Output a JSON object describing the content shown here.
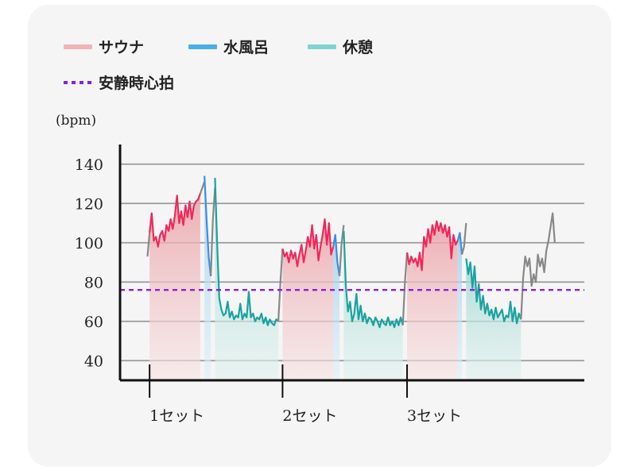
{
  "chart_data": {
    "type": "line",
    "title": "",
    "ylabel": "(bpm)",
    "xlabel": "",
    "ylim": [
      30,
      150
    ],
    "yticks": [
      40,
      60,
      80,
      100,
      120,
      140
    ],
    "grid": true,
    "legend_position": "top-left",
    "resting_hr": 76,
    "set_labels": [
      "1セット",
      "2セット",
      "3セット"
    ],
    "legend": [
      {
        "key": "sauna",
        "label": "サウナ",
        "color": "#f2b2b6"
      },
      {
        "key": "cold",
        "label": "水風呂",
        "color": "#4aaee8"
      },
      {
        "key": "rest",
        "label": "休憩",
        "color": "#7fd4cf"
      },
      {
        "key": "resting",
        "label": "安静時心拍",
        "color": "#8a1fe0",
        "dashed": true
      }
    ],
    "colors": {
      "sauna_line": "#f2285a",
      "cold_line": "#3a8ee6",
      "rest_line": "#1aa3a0",
      "other_line": "#888888",
      "sauna_fill": "#f0b9bd",
      "cold_fill": "#b8dcf0",
      "rest_fill": "#bfe3df"
    },
    "series": [
      {
        "key": "warmup",
        "phase": "other",
        "t": [
          0,
          1
        ],
        "values": [
          93,
          105
        ]
      },
      {
        "key": "sauna1",
        "phase": "sauna",
        "t": [
          1,
          2,
          3,
          4,
          5,
          6,
          7,
          8,
          9,
          10,
          11,
          12,
          13,
          14,
          15,
          16,
          17,
          18,
          19,
          20,
          21,
          22,
          23,
          24,
          25
        ],
        "values": [
          105,
          115,
          101,
          103,
          98,
          104,
          106,
          101,
          109,
          106,
          112,
          107,
          114,
          124,
          110,
          116,
          109,
          119,
          113,
          121,
          112,
          119,
          121,
          122,
          125
        ]
      },
      {
        "key": "gap1",
        "phase": "other",
        "t": [
          25,
          26,
          27
        ],
        "values": [
          125,
          128,
          131
        ]
      },
      {
        "key": "cold1",
        "phase": "cold",
        "t": [
          27,
          28,
          29,
          30
        ],
        "values": [
          134,
          112,
          93,
          83
        ]
      },
      {
        "key": "gap1b",
        "phase": "other",
        "t": [
          30,
          31,
          32
        ],
        "values": [
          83,
          112,
          128
        ]
      },
      {
        "key": "rest1",
        "phase": "rest",
        "t": [
          32,
          33,
          34,
          35,
          36,
          37,
          38,
          39,
          40,
          41,
          42,
          43,
          44,
          45,
          46,
          47,
          48,
          49,
          50,
          51,
          52,
          53,
          54,
          55,
          56,
          57,
          58,
          59,
          60,
          61,
          62
        ],
        "values": [
          133,
          100,
          72,
          66,
          63,
          64,
          70,
          62,
          65,
          61,
          63,
          62,
          69,
          61,
          64,
          62,
          75,
          62,
          64,
          60,
          62,
          61,
          64,
          59,
          62,
          58,
          61,
          59,
          58,
          61,
          60
        ]
      },
      {
        "key": "gap2",
        "phase": "other",
        "t": [
          62,
          63,
          64
        ],
        "values": [
          60,
          80,
          97
        ]
      },
      {
        "key": "sauna2",
        "phase": "sauna",
        "t": [
          64,
          65,
          66,
          67,
          68,
          69,
          70,
          71,
          72,
          73,
          74,
          75,
          76,
          77,
          78,
          79,
          80,
          81,
          82,
          83,
          84,
          85,
          86,
          87,
          88
        ],
        "values": [
          97,
          93,
          95,
          90,
          96,
          92,
          95,
          88,
          94,
          99,
          90,
          96,
          103,
          98,
          109,
          97,
          104,
          91,
          98,
          104,
          112,
          99,
          110,
          94,
          98
        ]
      },
      {
        "key": "cold2",
        "phase": "cold",
        "t": [
          88,
          89,
          90,
          91
        ],
        "values": [
          98,
          104,
          90,
          83
        ]
      },
      {
        "key": "gap2b",
        "phase": "other",
        "t": [
          91,
          92,
          93
        ],
        "values": [
          83,
          100,
          109
        ]
      },
      {
        "key": "rest2",
        "phase": "rest",
        "t": [
          93,
          94,
          95,
          96,
          97,
          98,
          99,
          100,
          101,
          102,
          103,
          104,
          105,
          106,
          107,
          108,
          109,
          110,
          111,
          112,
          113,
          114,
          115,
          116,
          117,
          118,
          119,
          120,
          121
        ],
        "values": [
          106,
          78,
          65,
          70,
          60,
          64,
          74,
          61,
          68,
          60,
          64,
          59,
          62,
          61,
          58,
          62,
          60,
          57,
          61,
          59,
          58,
          62,
          58,
          60,
          57,
          61,
          58,
          62,
          58
        ]
      },
      {
        "key": "gap3",
        "phase": "other",
        "t": [
          121,
          122,
          123
        ],
        "values": [
          58,
          80,
          95
        ]
      },
      {
        "key": "sauna3",
        "phase": "sauna",
        "t": [
          123,
          124,
          125,
          126,
          127,
          128,
          129,
          130,
          131,
          132,
          133,
          134,
          135,
          136,
          137,
          138,
          139,
          140,
          141,
          142,
          143,
          144,
          145,
          146,
          147
        ],
        "values": [
          95,
          89,
          93,
          90,
          92,
          88,
          95,
          86,
          103,
          98,
          107,
          100,
          109,
          104,
          111,
          106,
          110,
          105,
          109,
          103,
          108,
          92,
          104,
          99,
          101
        ]
      },
      {
        "key": "cold3",
        "phase": "cold",
        "t": [
          147,
          148,
          149
        ],
        "values": [
          101,
          105,
          94
        ]
      },
      {
        "key": "gap3b",
        "phase": "other",
        "t": [
          149,
          150,
          151
        ],
        "values": [
          94,
          98,
          110
        ]
      },
      {
        "key": "rest3",
        "phase": "rest",
        "t": [
          151,
          152,
          153,
          154,
          155,
          156,
          157,
          158,
          159,
          160,
          161,
          162,
          163,
          164,
          165,
          166,
          167,
          168,
          169,
          170,
          171,
          172,
          173,
          174,
          175,
          176,
          177
        ],
        "values": [
          92,
          84,
          90,
          77,
          88,
          70,
          79,
          66,
          73,
          64,
          69,
          63,
          66,
          61,
          67,
          62,
          64,
          66,
          60,
          63,
          62,
          70,
          60,
          67,
          59,
          64,
          61
        ]
      },
      {
        "key": "after",
        "phase": "other",
        "t": [
          177,
          178,
          179,
          180,
          181,
          182,
          183,
          184,
          185,
          186,
          187,
          188,
          189,
          190,
          191,
          192,
          193
        ],
        "values": [
          61,
          82,
          93,
          88,
          92,
          78,
          84,
          80,
          94,
          88,
          92,
          85,
          96,
          101,
          108,
          115,
          100
        ]
      }
    ],
    "shade_phases": [
      "sauna",
      "cold",
      "rest"
    ],
    "set_starts": [
      1,
      64,
      123
    ],
    "t_range": [
      -13,
      207
    ]
  }
}
